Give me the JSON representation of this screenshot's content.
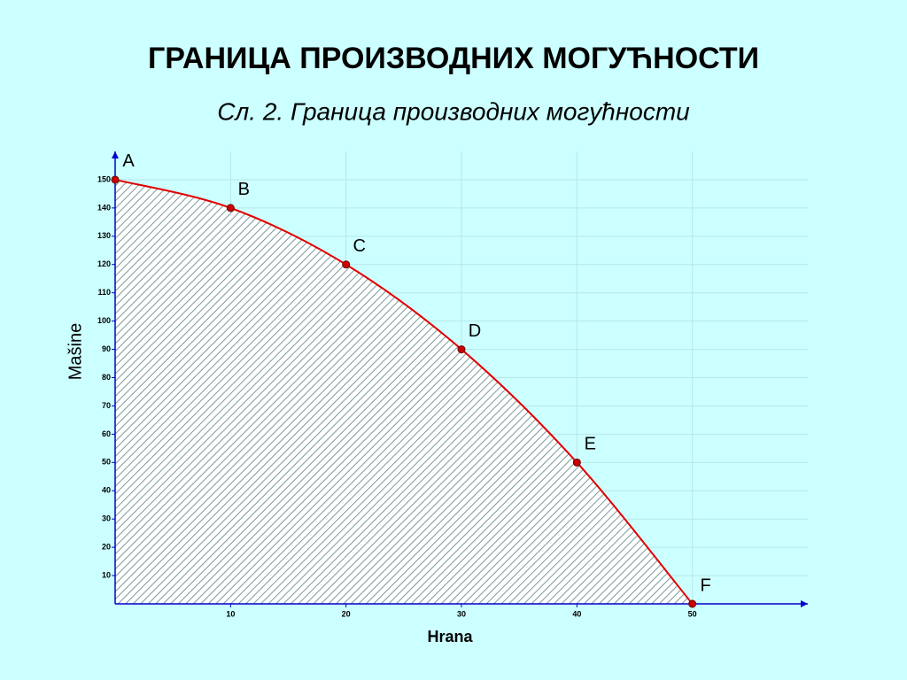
{
  "chart_data": {
    "type": "line",
    "title": "ГРАНИЦА ПРОИЗВОДНИХ МОГУЋНОСТИ",
    "subtitle": "Сл. 2. Граница производних могућности",
    "x_label": "Hrana",
    "y_label": "Mašine",
    "x": [
      0,
      10,
      20,
      30,
      40,
      50
    ],
    "values": [
      150,
      140,
      120,
      90,
      50,
      0
    ],
    "point_labels": [
      "A",
      "B",
      "C",
      "D",
      "E",
      "F"
    ],
    "color": "#e00000",
    "xlim": [
      0,
      60
    ],
    "xticks": [
      10,
      20,
      30,
      40,
      50
    ],
    "ylim": [
      0,
      160
    ],
    "yticks": [
      10,
      20,
      30,
      40,
      50,
      60,
      70,
      80,
      90,
      100,
      110,
      120,
      130,
      140,
      150
    ],
    "grid": true
  }
}
